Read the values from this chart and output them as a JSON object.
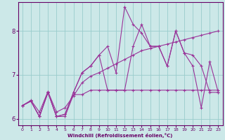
{
  "xlabel": "Windchill (Refroidissement éolien,°C)",
  "background_color": "#cce8e8",
  "grid_color": "#99cccc",
  "line_color": "#993399",
  "xlim": [
    -0.5,
    23.5
  ],
  "ylim": [
    5.85,
    8.65
  ],
  "yticks": [
    6,
    7,
    8
  ],
  "xticks": [
    0,
    1,
    2,
    3,
    4,
    5,
    6,
    7,
    8,
    9,
    10,
    11,
    12,
    13,
    14,
    15,
    16,
    17,
    18,
    19,
    20,
    21,
    22,
    23
  ],
  "series": [
    [
      6.3,
      6.4,
      6.05,
      6.6,
      6.05,
      6.05,
      6.55,
      6.55,
      6.65,
      6.65,
      6.65,
      6.65,
      6.65,
      6.65,
      6.65,
      6.65,
      6.65,
      6.65,
      6.65,
      6.65,
      6.65,
      6.65,
      6.65,
      6.65
    ],
    [
      6.3,
      6.4,
      6.05,
      6.6,
      6.05,
      6.1,
      6.6,
      7.05,
      7.2,
      7.45,
      7.65,
      7.05,
      8.55,
      8.15,
      7.95,
      7.65,
      7.65,
      7.2,
      8.0,
      7.5,
      7.2,
      6.25,
      7.3,
      6.6
    ],
    [
      6.3,
      6.4,
      6.05,
      6.6,
      6.05,
      6.1,
      6.6,
      7.05,
      7.2,
      7.45,
      6.65,
      6.65,
      6.65,
      7.65,
      8.15,
      7.65,
      7.65,
      7.2,
      8.0,
      7.5,
      7.45,
      7.2,
      6.6,
      6.6
    ],
    [
      6.3,
      6.42,
      6.15,
      6.62,
      6.15,
      6.25,
      6.52,
      6.82,
      6.97,
      7.05,
      7.15,
      7.25,
      7.35,
      7.45,
      7.55,
      7.6,
      7.65,
      7.7,
      7.75,
      7.8,
      7.85,
      7.9,
      7.95,
      8.0
    ]
  ]
}
